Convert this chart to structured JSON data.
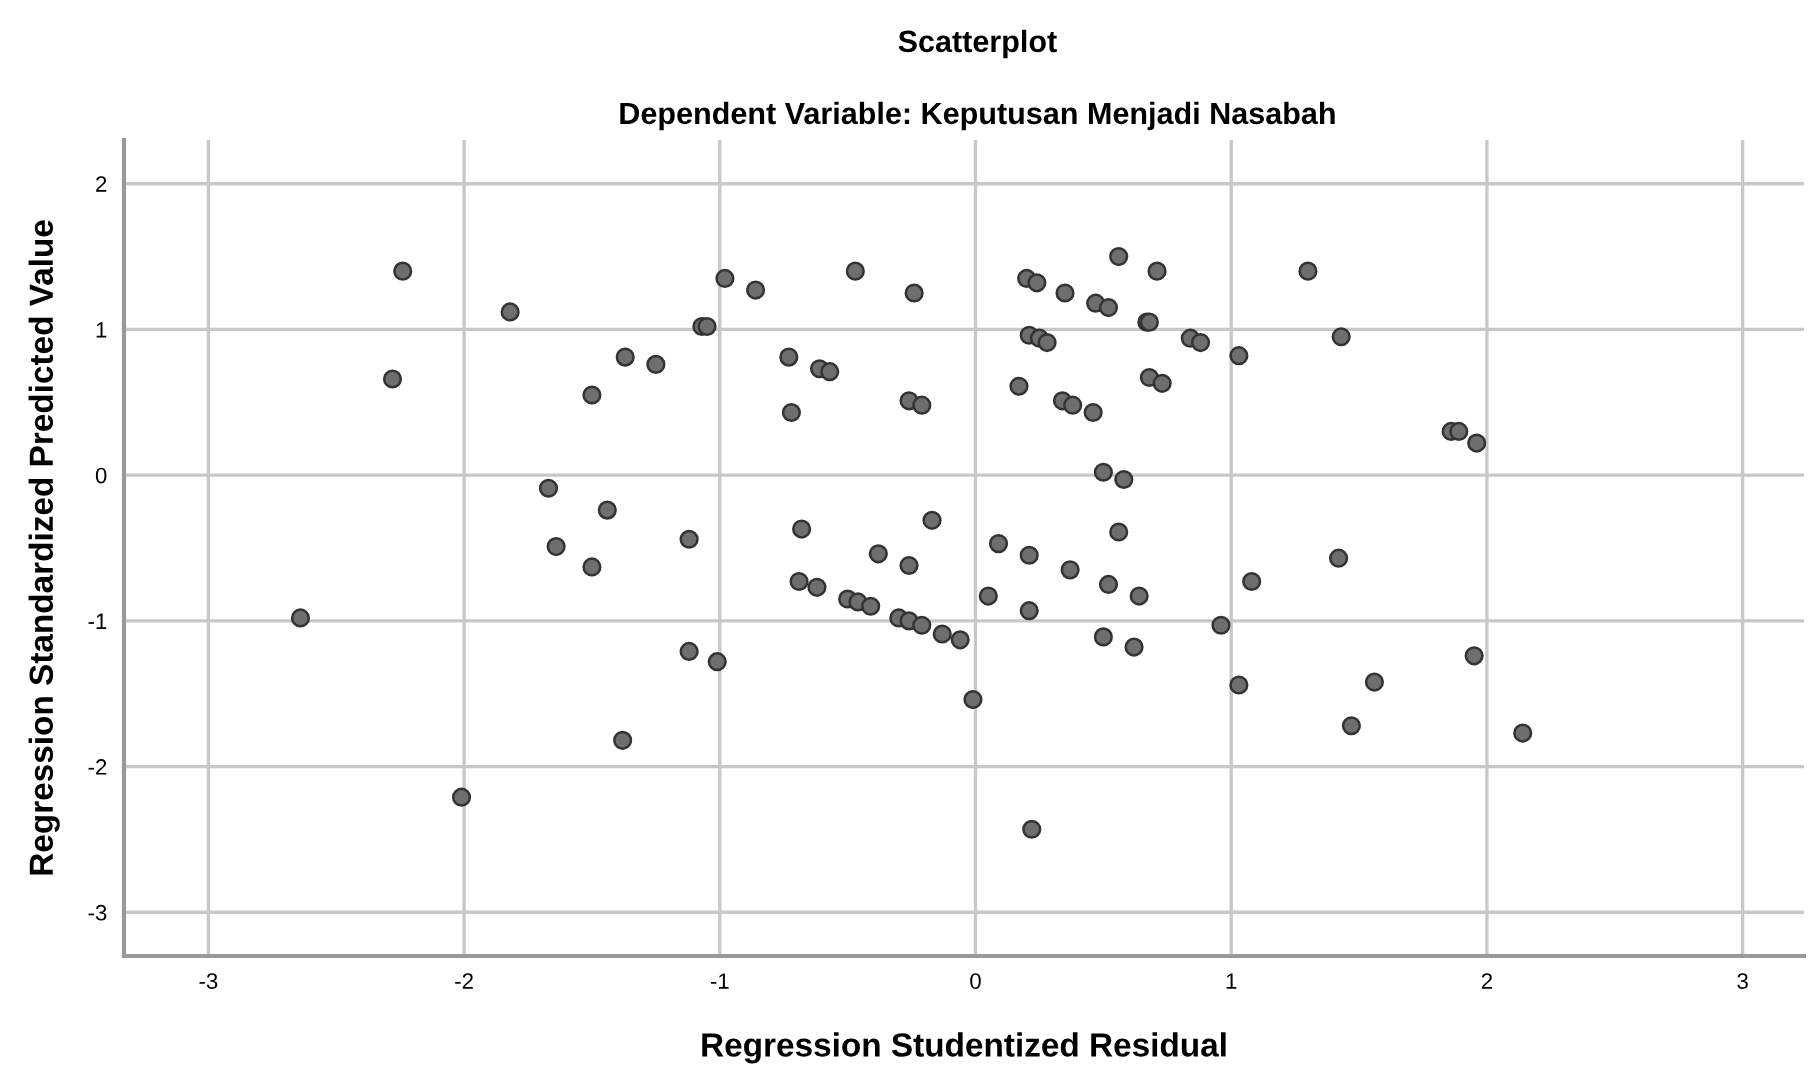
{
  "chart_data": {
    "type": "scatter",
    "title": "Scatterplot",
    "subtitle": "Dependent Variable: Keputusan Menjadi Nasabah",
    "xlabel": "Regression Studentized Residual",
    "ylabel": "Regression Standardized Predicted Value",
    "x": [
      -2.24,
      -2.28,
      -1.82,
      -1.07,
      -1.05,
      -1.37,
      -1.25,
      -1.5,
      -1.67,
      -1.44,
      -1.64,
      -1.5,
      -1.12,
      -2.64,
      -1.12,
      -1.01,
      -2.01,
      -1.38,
      -0.98,
      -0.86,
      -0.47,
      -0.24,
      -0.73,
      -0.61,
      -0.57,
      -0.72,
      -0.26,
      -0.21,
      0.2,
      0.24,
      0.35,
      0.56,
      0.71,
      0.47,
      0.52,
      0.67,
      0.68,
      0.21,
      0.25,
      0.28,
      0.84,
      0.88,
      1.03,
      0.17,
      0.34,
      0.38,
      0.46,
      0.68,
      0.73,
      0.5,
      0.58,
      -0.68,
      -0.17,
      -0.38,
      -0.26,
      0.09,
      0.21,
      0.37,
      0.56,
      0.52,
      1.08,
      -0.69,
      -0.62,
      -0.5,
      -0.46,
      -0.41,
      -0.3,
      -0.26,
      -0.21,
      -0.13,
      -0.06,
      -0.01,
      0.05,
      0.21,
      0.5,
      0.62,
      0.64,
      0.96,
      1.03,
      0.22,
      1.3,
      1.43,
      1.86,
      1.89,
      1.96,
      1.42,
      1.56,
      1.47,
      1.95,
      2.14
    ],
    "series": [
      {
        "color": "#6e6e6e",
        "values": [
          1.4,
          0.66,
          1.12,
          1.02,
          1.02,
          0.81,
          0.76,
          0.55,
          -0.09,
          -0.24,
          -0.49,
          -0.63,
          -0.44,
          -0.98,
          -1.21,
          -1.28,
          -2.21,
          -1.82,
          1.35,
          1.27,
          1.4,
          1.25,
          0.81,
          0.73,
          0.71,
          0.43,
          0.51,
          0.48,
          1.35,
          1.32,
          1.25,
          1.5,
          1.4,
          1.18,
          1.15,
          1.05,
          1.05,
          0.96,
          0.94,
          0.91,
          0.94,
          0.91,
          0.82,
          0.61,
          0.51,
          0.48,
          0.43,
          0.67,
          0.63,
          0.02,
          -0.03,
          -0.37,
          -0.31,
          -0.54,
          -0.62,
          -0.47,
          -0.55,
          -0.65,
          -0.39,
          -0.75,
          -0.73,
          -0.73,
          -0.77,
          -0.85,
          -0.87,
          -0.9,
          -0.98,
          -1.0,
          -1.03,
          -1.09,
          -1.13,
          -1.54,
          -0.83,
          -0.93,
          -1.11,
          -1.18,
          -0.83,
          -1.03,
          -1.44,
          -2.43,
          1.4,
          0.95,
          0.3,
          0.3,
          0.22,
          -0.57,
          -1.42,
          -1.72,
          -1.24,
          -1.77
        ]
      }
    ],
    "xlim": [
      -3.33,
      3.24
    ],
    "ylim": [
      -3.3,
      2.3
    ],
    "xticks": [
      -3,
      -2,
      -1,
      0,
      1,
      2,
      3
    ],
    "yticks": [
      -3,
      -2,
      -1,
      0,
      1,
      2
    ],
    "grid": true,
    "marker": "circle"
  }
}
